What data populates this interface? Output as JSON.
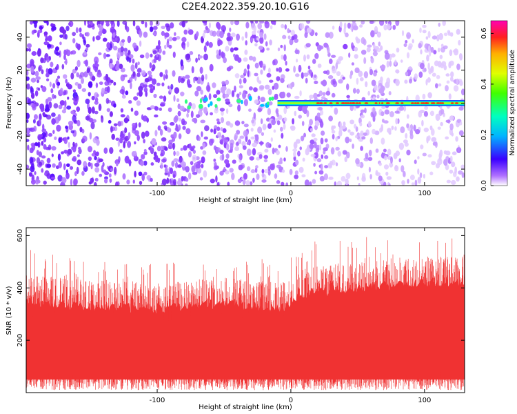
{
  "title": "C2E4.2022.359.20.10.G16",
  "colors": {
    "background_spectrogram": "#7a2bf5",
    "snr_fill": "#f03232",
    "colorbar": [
      "#ffffff",
      "#9b30ff",
      "#3a00ff",
      "#00c8ff",
      "#00ff40",
      "#c8ff00",
      "#ffcc00",
      "#ff3000",
      "#ff00b4"
    ]
  },
  "chart_data": [
    {
      "type": "heatmap",
      "title": "C2E4.2022.359.20.10.G16",
      "xlabel": "Height of straight line (km)",
      "ylabel": "Frequency (Hz)",
      "xlim": [
        -198,
        130
      ],
      "ylim": [
        -50,
        50
      ],
      "xticks": [
        -100,
        0,
        100
      ],
      "xtick_labels": [
        "-100",
        "0",
        "100"
      ],
      "yticks": [
        -40,
        -20,
        0,
        20,
        40
      ],
      "ytick_labels": [
        "-40",
        "-20",
        "0",
        "20",
        "40"
      ],
      "colorbar": {
        "label": "Normalized spectral amplitude",
        "range": [
          0,
          0.65
        ],
        "ticks": [
          0,
          0.2,
          0.4,
          0.6
        ],
        "tick_labels": [
          "0.0",
          "0.2",
          "0.4",
          "0.6"
        ]
      },
      "features": [
        {
          "description": "Strong narrow band at 0 Hz",
          "x_start": -10,
          "x_end": 130,
          "frequency": 0,
          "amplitude": 0.55
        }
      ]
    },
    {
      "type": "area",
      "xlabel": "Height of straight line (km)",
      "ylabel": "SNR (10 * v/v)",
      "xlim": [
        -198,
        130
      ],
      "ylim": [
        0,
        630
      ],
      "xticks": [
        -100,
        0,
        100
      ],
      "xtick_labels": [
        "-100",
        "0",
        "100"
      ],
      "yticks": [
        200,
        400,
        600
      ],
      "ytick_labels": [
        "200",
        "400",
        "600"
      ],
      "envelope": {
        "x": [
          -198,
          -150,
          -100,
          -50,
          -10,
          0,
          10,
          50,
          100,
          130
        ],
        "upper": [
          430,
          410,
          400,
          420,
          400,
          420,
          460,
          480,
          500,
          500
        ],
        "lower": [
          10,
          10,
          10,
          10,
          10,
          10,
          10,
          10,
          10,
          10
        ],
        "peak": [
          550,
          500,
          500,
          500,
          520,
          560,
          580,
          600,
          620,
          620
        ]
      }
    }
  ]
}
